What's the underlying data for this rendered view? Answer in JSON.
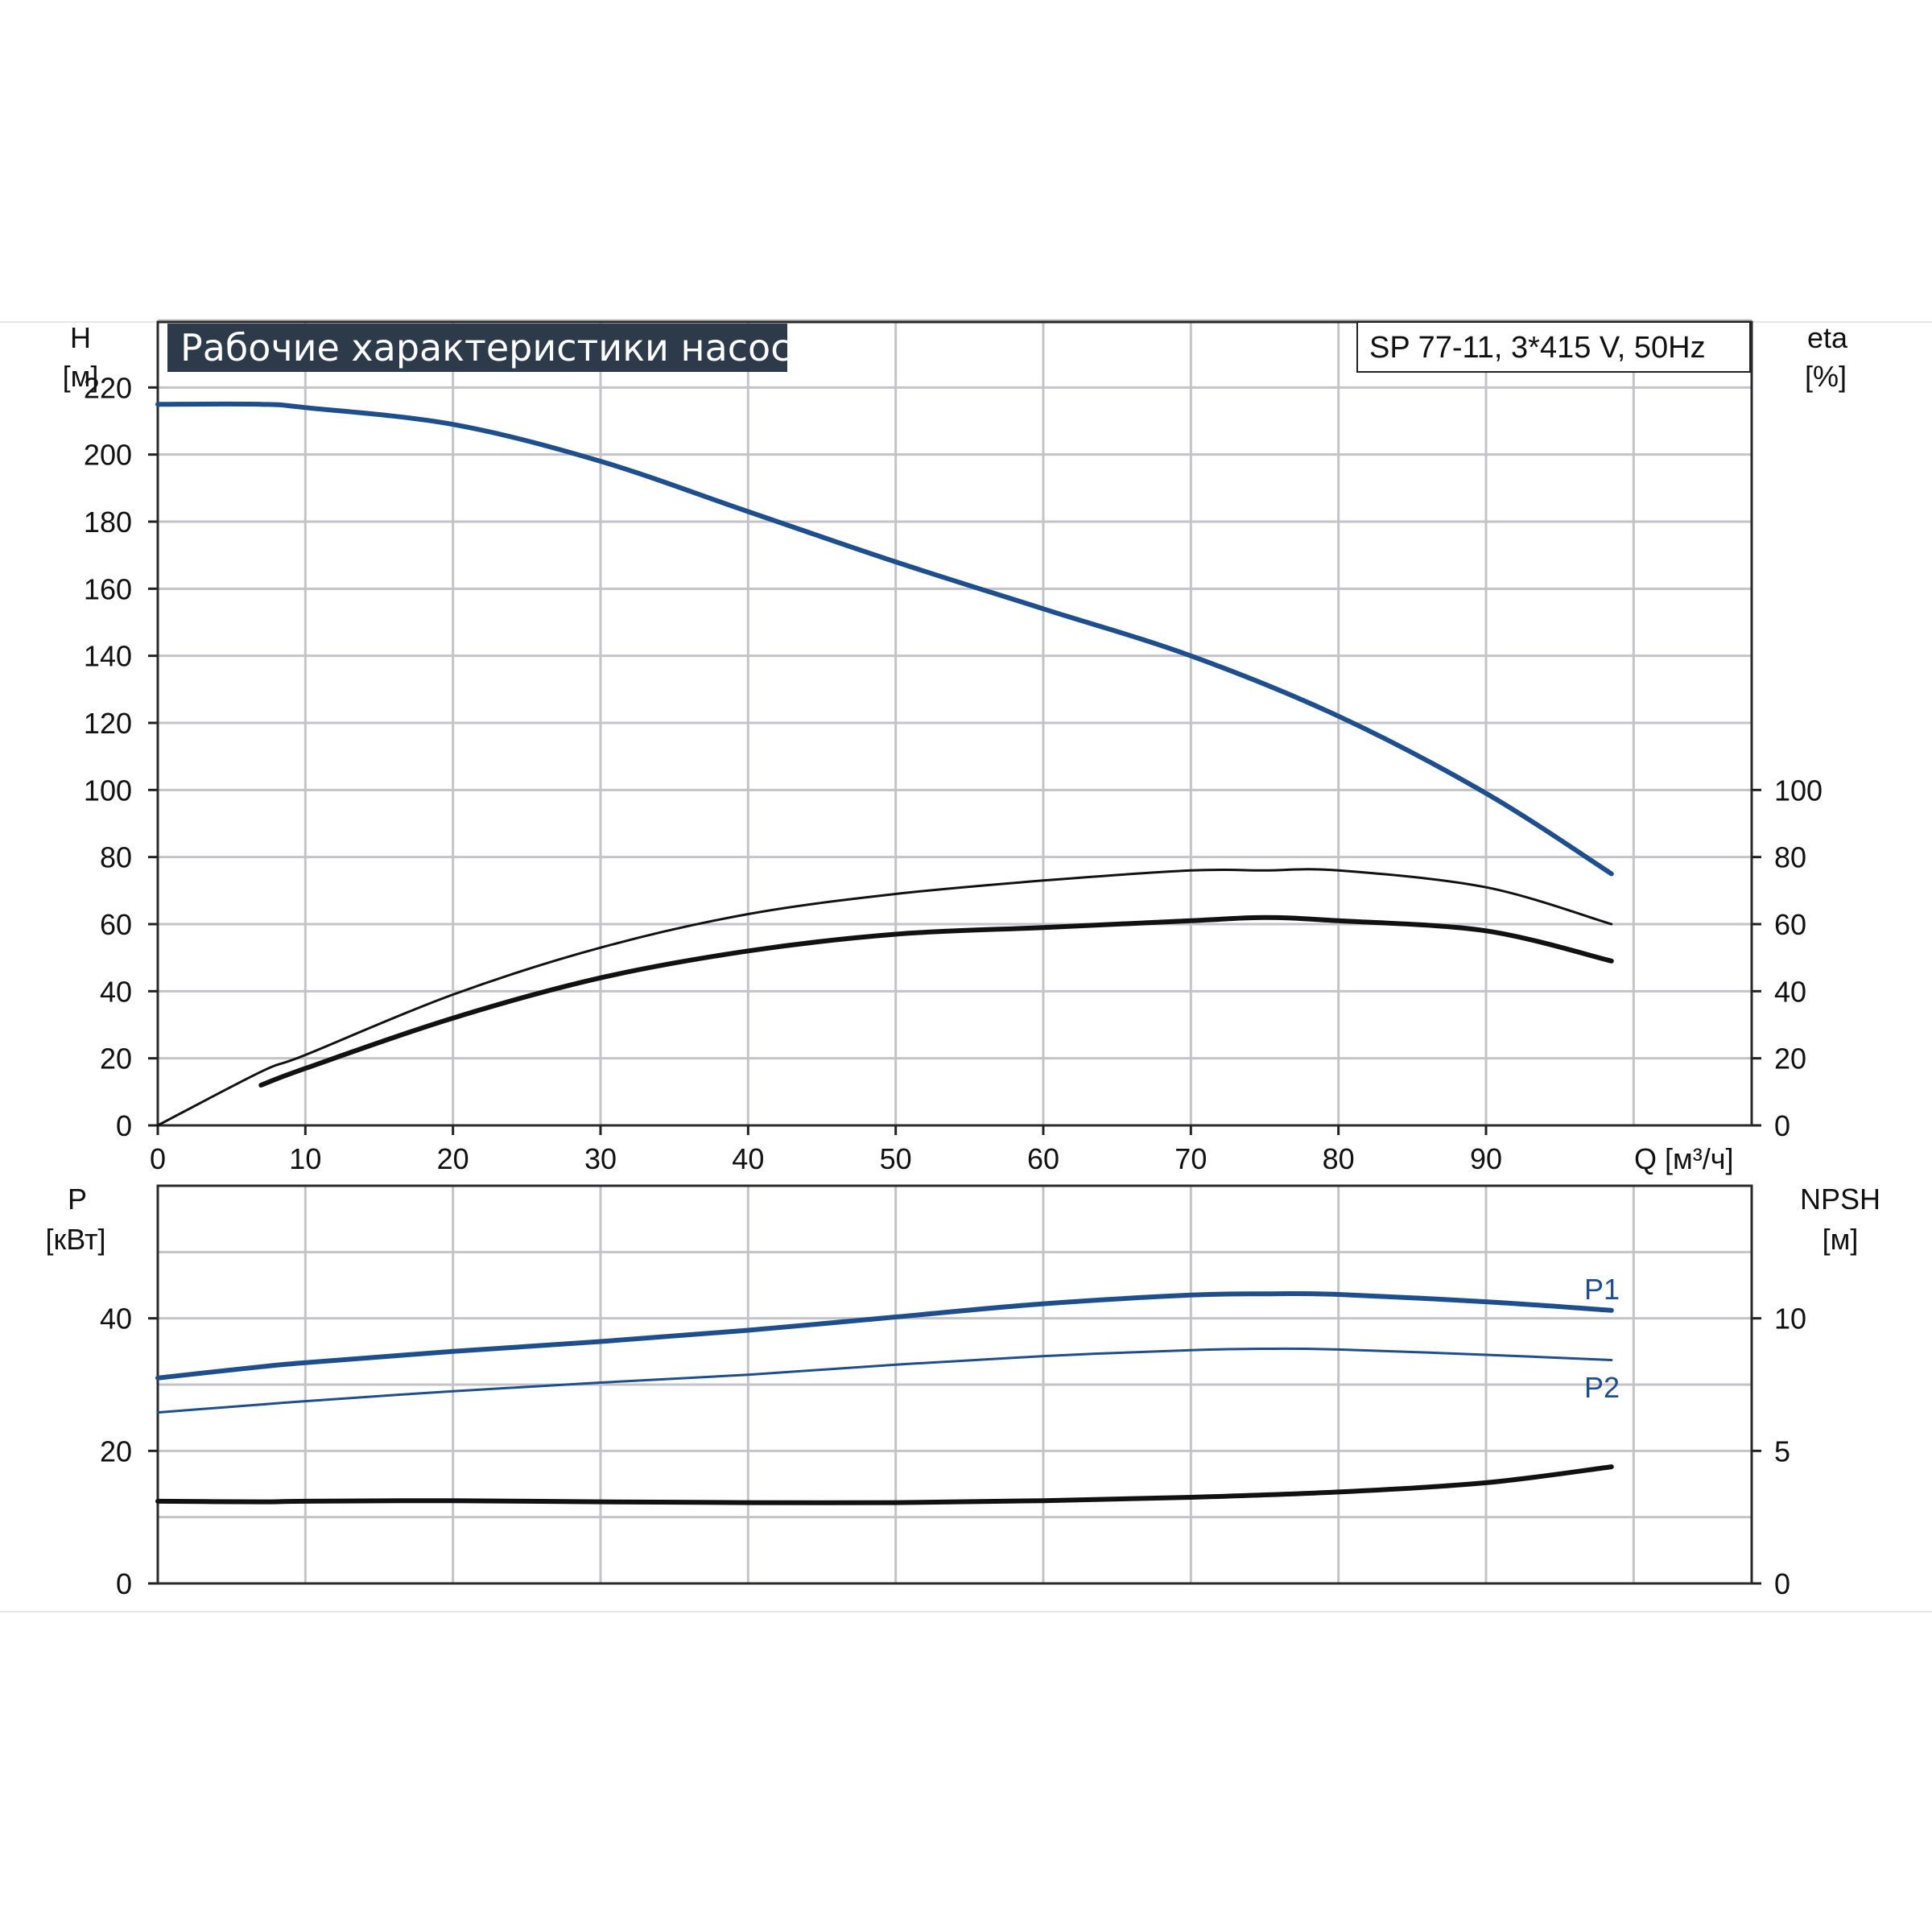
{
  "title": "Рабочие характеристики насоса",
  "model": "SP 77-11, 3*415 V, 50Hz",
  "colors": {
    "blue": "#1f4e8c",
    "black": "#111111",
    "grid": "#c3c3c8",
    "title_bg": "#2d3a4a"
  },
  "chart_data": [
    {
      "type": "line",
      "panel": "top",
      "xlabel": "Q [м³/ч]",
      "ylabel_left": [
        "H",
        "[м]"
      ],
      "ylabel_right": [
        "eta",
        "[%]"
      ],
      "xlim": [
        0,
        108
      ],
      "ylim_left": [
        0,
        240
      ],
      "ylim_right": [
        0,
        240
      ],
      "x_ticks": [
        0,
        10,
        20,
        30,
        40,
        50,
        60,
        70,
        80,
        90
      ],
      "y_ticks_left": [
        0,
        20,
        40,
        60,
        80,
        100,
        120,
        140,
        160,
        180,
        200,
        220
      ],
      "y_ticks_right": [
        0,
        20,
        40,
        60,
        80,
        100
      ],
      "grid": true,
      "series": [
        {
          "axis": "left",
          "color": "#1f4e8c",
          "style": "thick",
          "x": [
            0,
            7,
            10,
            20,
            30,
            40,
            50,
            60,
            70,
            80,
            90,
            98.5
          ],
          "y": [
            215,
            215,
            214,
            209,
            198,
            183,
            168,
            154,
            140,
            122,
            99,
            75
          ]
        },
        {
          "axis": "right",
          "color": "#111111",
          "style": "thin",
          "x": [
            0,
            7,
            10,
            20,
            30,
            40,
            50,
            60,
            70,
            75,
            80,
            90,
            98.5
          ],
          "y": [
            0,
            16,
            21,
            39,
            53,
            63,
            69,
            73,
            76,
            76,
            76,
            71,
            60
          ]
        },
        {
          "axis": "right",
          "color": "#111111",
          "style": "thick",
          "x": [
            7,
            10,
            20,
            30,
            40,
            50,
            60,
            70,
            75,
            80,
            90,
            98.5
          ],
          "y": [
            12,
            17,
            32,
            44,
            52,
            57,
            59,
            61,
            62,
            61,
            58,
            49
          ]
        }
      ]
    },
    {
      "type": "line",
      "panel": "bottom",
      "ylabel_left": [
        "P",
        "[кВт]"
      ],
      "ylabel_right": [
        "NPSH",
        "[м]"
      ],
      "xlim": [
        0,
        108
      ],
      "ylim_left": [
        0,
        60
      ],
      "ylim_right": [
        0,
        15
      ],
      "y_ticks_left": [
        0,
        20,
        40
      ],
      "y_ticks_right": [
        0,
        5,
        10
      ],
      "grid": true,
      "series": [
        {
          "name": "P1",
          "axis": "left",
          "color": "#1f4e8c",
          "style": "thick",
          "x": [
            0,
            7,
            10,
            20,
            30,
            40,
            50,
            60,
            70,
            75,
            80,
            90,
            98.5
          ],
          "y": [
            31,
            32.7,
            33.3,
            35,
            36.5,
            38.2,
            40.2,
            42.2,
            43.5,
            43.7,
            43.6,
            42.5,
            41.2
          ]
        },
        {
          "name": "P2",
          "axis": "left",
          "color": "#1f4e8c",
          "style": "thin",
          "x": [
            0,
            7,
            10,
            20,
            30,
            40,
            50,
            60,
            70,
            75,
            80,
            90,
            98.5
          ],
          "y": [
            25.8,
            27,
            27.5,
            29,
            30.3,
            31.5,
            33,
            34.3,
            35.2,
            35.4,
            35.3,
            34.5,
            33.7
          ]
        },
        {
          "axis": "right",
          "color": "#111111",
          "style": "thick",
          "x": [
            0,
            7,
            10,
            20,
            30,
            40,
            50,
            60,
            70,
            80,
            90,
            98.5
          ],
          "y": [
            3.1,
            3.08,
            3.1,
            3.12,
            3.08,
            3.05,
            3.05,
            3.12,
            3.25,
            3.45,
            3.8,
            4.4
          ]
        }
      ]
    }
  ]
}
